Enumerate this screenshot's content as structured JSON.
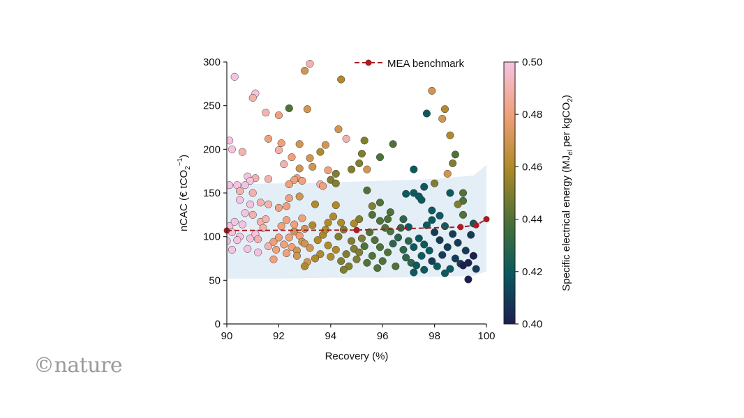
{
  "logo": "©nature",
  "chart_data": {
    "type": "scatter",
    "xlabel": "Recovery (%)",
    "ylabel_parts": {
      "main": "nCAC (€ tCO",
      "sub": "2",
      "sup": "−1",
      "end": ")"
    },
    "xlim": [
      90,
      100
    ],
    "ylim": [
      0,
      300
    ],
    "xticks": [
      90,
      92,
      94,
      96,
      98,
      100
    ],
    "yticks": [
      0,
      50,
      100,
      150,
      200,
      250,
      300
    ],
    "grid": false,
    "legend": {
      "label": "MEA benchmark",
      "placement": "top-right",
      "color": "#a81c22"
    },
    "colorbar": {
      "label_parts": {
        "main": "Specific electrical energy (MJ",
        "sub1": "el",
        "mid": " per kgCO",
        "sub2": "2",
        "end": ")"
      },
      "range": [
        0.4,
        0.5
      ],
      "ticks": [
        "0.40",
        "0.42",
        "0.44",
        "0.46",
        "0.48",
        "0.50"
      ],
      "stops": [
        {
          "v": 0.4,
          "color": "#1c1f50"
        },
        {
          "v": 0.42,
          "color": "#0b5a5e"
        },
        {
          "v": 0.44,
          "color": "#4f7236"
        },
        {
          "v": 0.46,
          "color": "#b08a2a"
        },
        {
          "v": 0.48,
          "color": "#f0a07a"
        },
        {
          "v": 0.5,
          "color": "#f5c3e0"
        }
      ]
    },
    "benchmark": [
      [
        90,
        107
      ],
      [
        95,
        107.5
      ],
      [
        99,
        111
      ],
      [
        99.6,
        113
      ],
      [
        100,
        120
      ]
    ],
    "band": {
      "color": "#e3eef6",
      "x": [
        90,
        92,
        94,
        96,
        98,
        99.5,
        100
      ],
      "upper": [
        160,
        161,
        162,
        164,
        166,
        170,
        182
      ],
      "lower": [
        52,
        52,
        53,
        53,
        54,
        55,
        60
      ]
    },
    "points_format": [
      "recovery",
      "nCAC",
      "energy"
    ],
    "points": [
      [
        90.3,
        283,
        0.5
      ],
      [
        91.1,
        264,
        0.5
      ],
      [
        91,
        259,
        0.49
      ],
      [
        91.5,
        242,
        0.49
      ],
      [
        92,
        239,
        0.48
      ],
      [
        92.4,
        247,
        0.44
      ],
      [
        93,
        290,
        0.47
      ],
      [
        93.2,
        298,
        0.49
      ],
      [
        93.1,
        246,
        0.47
      ],
      [
        94.4,
        280,
        0.46
      ],
      [
        97.9,
        267,
        0.47
      ],
      [
        97.7,
        241,
        0.42
      ],
      [
        98.4,
        246,
        0.46
      ],
      [
        98.3,
        235,
        0.47
      ],
      [
        98.6,
        216,
        0.46
      ],
      [
        98.8,
        194,
        0.44
      ],
      [
        98.7,
        184,
        0.45
      ],
      [
        98.5,
        172,
        0.47
      ],
      [
        94.3,
        223,
        0.47
      ],
      [
        94.6,
        212,
        0.49
      ],
      [
        95.3,
        210,
        0.45
      ],
      [
        96.4,
        206,
        0.44
      ],
      [
        95.2,
        195,
        0.45
      ],
      [
        95.9,
        191,
        0.44
      ],
      [
        95.1,
        184,
        0.45
      ],
      [
        94.8,
        177,
        0.45
      ],
      [
        95.4,
        177,
        0.47
      ],
      [
        97.2,
        177,
        0.42
      ],
      [
        97.6,
        157,
        0.42
      ],
      [
        98,
        161,
        0.45
      ],
      [
        90.1,
        210,
        0.5
      ],
      [
        90.2,
        200,
        0.5
      ],
      [
        90.6,
        197,
        0.49
      ],
      [
        91.6,
        212,
        0.48
      ],
      [
        92.1,
        207,
        0.48
      ],
      [
        92,
        199,
        0.49
      ],
      [
        92.2,
        183,
        0.49
      ],
      [
        92.8,
        206,
        0.47
      ],
      [
        93.6,
        197,
        0.46
      ],
      [
        93.8,
        205,
        0.47
      ],
      [
        93.2,
        190,
        0.47
      ],
      [
        92.5,
        191,
        0.48
      ],
      [
        92.8,
        178,
        0.47
      ],
      [
        93.3,
        180,
        0.47
      ],
      [
        93.9,
        176,
        0.48
      ],
      [
        94.2,
        172,
        0.45
      ],
      [
        94,
        165,
        0.45
      ],
      [
        94.2,
        161,
        0.45
      ],
      [
        92.7,
        167,
        0.48
      ],
      [
        92.6,
        165,
        0.48
      ],
      [
        92.9,
        164,
        0.48
      ],
      [
        93.6,
        160,
        0.49
      ],
      [
        93.7,
        158,
        0.48
      ],
      [
        91.6,
        166,
        0.49
      ],
      [
        92.4,
        160,
        0.48
      ],
      [
        91.1,
        167,
        0.49
      ],
      [
        90.8,
        169,
        0.5
      ],
      [
        90.9,
        164,
        0.5
      ],
      [
        90.4,
        159,
        0.5
      ],
      [
        90.7,
        159,
        0.5
      ],
      [
        90.1,
        159,
        0.5
      ],
      [
        90.5,
        152,
        0.49
      ],
      [
        91,
        150,
        0.49
      ],
      [
        90.5,
        142,
        0.5
      ],
      [
        90.9,
        137,
        0.5
      ],
      [
        91.3,
        139,
        0.49
      ],
      [
        91.6,
        137,
        0.49
      ],
      [
        92.4,
        144,
        0.48
      ],
      [
        92,
        133,
        0.48
      ],
      [
        92.3,
        135,
        0.48
      ],
      [
        92.8,
        146,
        0.47
      ],
      [
        93.4,
        137,
        0.46
      ],
      [
        94.2,
        136,
        0.46
      ],
      [
        95.4,
        153,
        0.44
      ],
      [
        95.6,
        135,
        0.45
      ],
      [
        96.3,
        128,
        0.44
      ],
      [
        96.8,
        120,
        0.43
      ],
      [
        97.5,
        142,
        0.42
      ],
      [
        97.2,
        150,
        0.42
      ],
      [
        98.6,
        150,
        0.42
      ],
      [
        99.1,
        150,
        0.44
      ],
      [
        99.1,
        141,
        0.44
      ],
      [
        98.9,
        137,
        0.45
      ],
      [
        99.1,
        125,
        0.44
      ],
      [
        99.5,
        115,
        0.42
      ],
      [
        99.4,
        102,
        0.41
      ],
      [
        99.6,
        63,
        0.41
      ],
      [
        99.3,
        51,
        0.4
      ],
      [
        99.5,
        78,
        0.4
      ],
      [
        96.9,
        149,
        0.42
      ],
      [
        97.4,
        146,
        0.42
      ],
      [
        98.2,
        124,
        0.42
      ],
      [
        97.9,
        130,
        0.42
      ],
      [
        95.9,
        139,
        0.44
      ],
      [
        95.6,
        125,
        0.44
      ],
      [
        90.1,
        112,
        0.5
      ],
      [
        90.3,
        117,
        0.5
      ],
      [
        90.6,
        114,
        0.5
      ],
      [
        90.2,
        105,
        0.5
      ],
      [
        90.5,
        100,
        0.5
      ],
      [
        90.9,
        98,
        0.5
      ],
      [
        91.1,
        103,
        0.5
      ],
      [
        90.4,
        96,
        0.5
      ],
      [
        91.2,
        97,
        0.49
      ],
      [
        90.8,
        86,
        0.5
      ],
      [
        91.2,
        82,
        0.5
      ],
      [
        91.6,
        89,
        0.49
      ],
      [
        90.2,
        85,
        0.5
      ],
      [
        90,
        95,
        0.5
      ],
      [
        91.3,
        117,
        0.49
      ],
      [
        91.5,
        120,
        0.49
      ],
      [
        91,
        125,
        0.49
      ],
      [
        90.7,
        127,
        0.5
      ],
      [
        91.4,
        110,
        0.49
      ],
      [
        91.8,
        94,
        0.48
      ],
      [
        92,
        99,
        0.48
      ],
      [
        92.2,
        91,
        0.48
      ],
      [
        91.9,
        85,
        0.48
      ],
      [
        92.3,
        81,
        0.48
      ],
      [
        92.5,
        88,
        0.48
      ],
      [
        92.1,
        112,
        0.48
      ],
      [
        92.3,
        119,
        0.48
      ],
      [
        92.6,
        106,
        0.47
      ],
      [
        92.8,
        101,
        0.48
      ],
      [
        92.9,
        94,
        0.47
      ],
      [
        92.4,
        99,
        0.48
      ],
      [
        92.7,
        84,
        0.47
      ],
      [
        93,
        92,
        0.47
      ],
      [
        93.2,
        87,
        0.47
      ],
      [
        92.6,
        114,
        0.48
      ],
      [
        93,
        109,
        0.47
      ],
      [
        93.3,
        113,
        0.46
      ],
      [
        92.9,
        121,
        0.48
      ],
      [
        91.8,
        74,
        0.48
      ],
      [
        92.7,
        78,
        0.47
      ],
      [
        93.1,
        71,
        0.47
      ],
      [
        93,
        66,
        0.46
      ],
      [
        93.5,
        96,
        0.46
      ],
      [
        93.7,
        102,
        0.46
      ],
      [
        93.9,
        90,
        0.46
      ],
      [
        94.2,
        85,
        0.46
      ],
      [
        93.6,
        80,
        0.46
      ],
      [
        94,
        77,
        0.46
      ],
      [
        94.4,
        72,
        0.45
      ],
      [
        94.6,
        80,
        0.45
      ],
      [
        94.3,
        100,
        0.45
      ],
      [
        94.8,
        95,
        0.45
      ],
      [
        94.5,
        108,
        0.45
      ],
      [
        94.9,
        86,
        0.45
      ],
      [
        95,
        74,
        0.45
      ],
      [
        94.7,
        66,
        0.45
      ],
      [
        93.9,
        116,
        0.46
      ],
      [
        94.1,
        123,
        0.46
      ],
      [
        94.9,
        115,
        0.46
      ],
      [
        95.1,
        120,
        0.45
      ],
      [
        94.5,
        62,
        0.45
      ],
      [
        93.4,
        75,
        0.46
      ],
      [
        93.8,
        108,
        0.46
      ],
      [
        94.4,
        116,
        0.46
      ],
      [
        95.2,
        98,
        0.45
      ],
      [
        95.3,
        89,
        0.44
      ],
      [
        95.1,
        82,
        0.45
      ],
      [
        95.5,
        105,
        0.44
      ],
      [
        95.7,
        96,
        0.44
      ],
      [
        95.9,
        88,
        0.44
      ],
      [
        95.6,
        78,
        0.44
      ],
      [
        96,
        72,
        0.44
      ],
      [
        96.2,
        82,
        0.44
      ],
      [
        96.4,
        92,
        0.43
      ],
      [
        96.6,
        99,
        0.43
      ],
      [
        96.3,
        106,
        0.44
      ],
      [
        96.8,
        85,
        0.43
      ],
      [
        96.9,
        76,
        0.43
      ],
      [
        96.5,
        66,
        0.44
      ],
      [
        95.8,
        64,
        0.44
      ],
      [
        96.1,
        110,
        0.44
      ],
      [
        96.7,
        110,
        0.43
      ],
      [
        97,
        95,
        0.43
      ],
      [
        97.2,
        88,
        0.42
      ],
      [
        97.1,
        70,
        0.43
      ],
      [
        95.4,
        70,
        0.44
      ],
      [
        95.9,
        118,
        0.44
      ],
      [
        96.2,
        120,
        0.44
      ],
      [
        97,
        111,
        0.42
      ],
      [
        97.4,
        98,
        0.42
      ],
      [
        97.6,
        91,
        0.42
      ],
      [
        97.8,
        84,
        0.42
      ],
      [
        97.5,
        78,
        0.42
      ],
      [
        97.9,
        72,
        0.41
      ],
      [
        98.1,
        66,
        0.42
      ],
      [
        98.3,
        79,
        0.41
      ],
      [
        98.5,
        88,
        0.41
      ],
      [
        98.2,
        96,
        0.41
      ],
      [
        98.7,
        103,
        0.41
      ],
      [
        98,
        105,
        0.41
      ],
      [
        98.8,
        75,
        0.41
      ],
      [
        99,
        69,
        0.41
      ],
      [
        98.6,
        63,
        0.42
      ],
      [
        97.6,
        62,
        0.42
      ],
      [
        97.3,
        67,
        0.42
      ],
      [
        99.2,
        84,
        0.41
      ],
      [
        99.3,
        70,
        0.4
      ],
      [
        98.9,
        93,
        0.41
      ],
      [
        97.7,
        113,
        0.42
      ],
      [
        98.4,
        112,
        0.42
      ],
      [
        97.9,
        119,
        0.42
      ],
      [
        99.1,
        67,
        0.4
      ],
      [
        98.4,
        58,
        0.42
      ],
      [
        97.2,
        59,
        0.42
      ]
    ]
  }
}
